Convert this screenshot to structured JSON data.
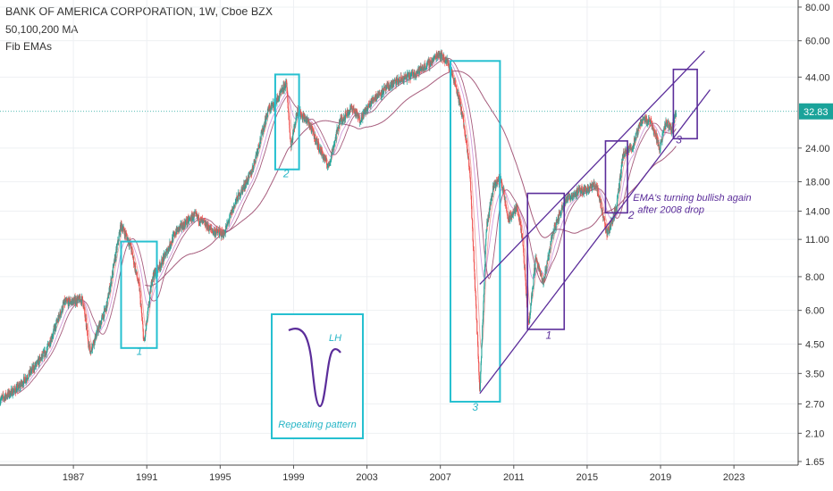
{
  "header": {
    "title": "BANK OF AMERICA CORPORATION, 1W, Cboe BZX",
    "indicator_ma": "50,100,200 MA",
    "indicator_ema": "Fib EMAs"
  },
  "price_label": {
    "value": "32.83",
    "color": "#1aa39a"
  },
  "colors": {
    "up": "#26a69a",
    "down": "#ef5350",
    "ma": "#9c4a6e",
    "ema_fast": "#ef9a9a",
    "ema_slow": "#ce93d8",
    "box_teal": "#26c0d0",
    "box_purple": "#5b2d9a",
    "trend": "#5b2d9a",
    "annot_teal": "#26b5c6",
    "annot_purple": "#5b2d9a"
  },
  "annotations": {
    "l1a": "1",
    "l2a": "2",
    "l3a": "3",
    "l1b": "1",
    "l2b": "2",
    "l3b": "3",
    "lh": "LH",
    "pattern": "Repeating pattern",
    "ema_note_line1": "EMA's turning bullish again",
    "ema_note_line2": "after 2008 drop"
  },
  "chart_data": {
    "type": "candlestick",
    "title": "BANK OF AMERICA CORPORATION, 1W, Cboe BZX",
    "y_scale": "log",
    "ylim": [
      1.6,
      85.0
    ],
    "xlim": [
      1983.0,
      2026.5
    ],
    "grid": true,
    "x_ticks": [
      "1987",
      "1991",
      "1995",
      "1999",
      "2003",
      "2007",
      "2011",
      "2015",
      "2019",
      "2023"
    ],
    "y_ticks": [
      "80.00",
      "60.00",
      "44.00",
      "32.83",
      "24.00",
      "18.00",
      "14.00",
      "11.00",
      "8.00",
      "6.00",
      "4.50",
      "3.50",
      "2.70",
      "2.10",
      "1.65"
    ],
    "last_price": 32.83,
    "anchors": [
      [
        1983.0,
        2.8
      ],
      [
        1984.0,
        3.1
      ],
      [
        1985.5,
        4.2
      ],
      [
        1986.5,
        6.4
      ],
      [
        1987.5,
        6.6
      ],
      [
        1987.9,
        4.2
      ],
      [
        1988.8,
        6.2
      ],
      [
        1989.6,
        12.5
      ],
      [
        1990.1,
        10.5
      ],
      [
        1990.6,
        7.2
      ],
      [
        1990.85,
        4.5
      ],
      [
        1991.3,
        8.0
      ],
      [
        1991.8,
        9.0
      ],
      [
        1992.6,
        11.8
      ],
      [
        1993.6,
        13.5
      ],
      [
        1994.6,
        11.8
      ],
      [
        1995.2,
        11.5
      ],
      [
        1995.8,
        15.0
      ],
      [
        1996.7,
        19.5
      ],
      [
        1997.6,
        33.0
      ],
      [
        1998.2,
        37.0
      ],
      [
        1998.6,
        42.0
      ],
      [
        1998.85,
        24.5
      ],
      [
        1999.2,
        33.0
      ],
      [
        1999.8,
        30.0
      ],
      [
        2000.4,
        24.0
      ],
      [
        2000.9,
        20.5
      ],
      [
        2001.5,
        30.0
      ],
      [
        2002.2,
        34.0
      ],
      [
        2002.6,
        30.5
      ],
      [
        2003.4,
        37.0
      ],
      [
        2004.5,
        42.0
      ],
      [
        2005.5,
        45.0
      ],
      [
        2006.5,
        50.0
      ],
      [
        2006.9,
        54.0
      ],
      [
        2007.4,
        50.0
      ],
      [
        2007.8,
        42.0
      ],
      [
        2008.2,
        32.0
      ],
      [
        2008.6,
        20.0
      ],
      [
        2009.15,
        3.0
      ],
      [
        2009.5,
        12.0
      ],
      [
        2009.9,
        17.5
      ],
      [
        2010.3,
        18.5
      ],
      [
        2010.7,
        13.0
      ],
      [
        2011.2,
        14.5
      ],
      [
        2011.5,
        10.5
      ],
      [
        2011.8,
        5.2
      ],
      [
        2012.2,
        9.5
      ],
      [
        2012.6,
        7.5
      ],
      [
        2013.1,
        11.5
      ],
      [
        2013.8,
        15.5
      ],
      [
        2014.5,
        16.5
      ],
      [
        2015.5,
        17.5
      ],
      [
        2016.1,
        11.5
      ],
      [
        2016.6,
        14.5
      ],
      [
        2016.95,
        22.5
      ],
      [
        2017.5,
        24.5
      ],
      [
        2018.0,
        31.0
      ],
      [
        2018.5,
        30.0
      ],
      [
        2018.95,
        24.0
      ],
      [
        2019.3,
        30.0
      ],
      [
        2019.6,
        28.0
      ],
      [
        2019.85,
        32.83
      ]
    ],
    "series": [
      {
        "name": "50,100,200 MA"
      },
      {
        "name": "Fib EMAs"
      }
    ]
  }
}
